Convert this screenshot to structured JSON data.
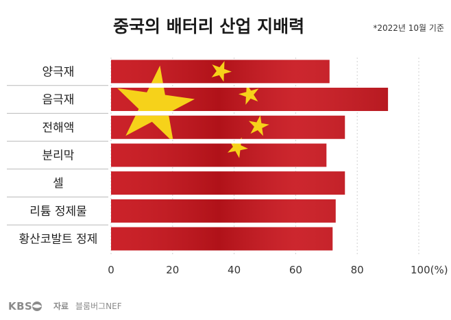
{
  "header": {
    "title": "중국의 배터리 산업 지배력",
    "note": "*2022년 10월 기준"
  },
  "footer": {
    "logo_text": "KBS",
    "source_label": "자료",
    "source_value": "블룸버그NEF"
  },
  "colors": {
    "flag_red": "#c8141c",
    "star_yellow": "#f6d21a",
    "separator": "#b9b9b9"
  },
  "chart_data": {
    "type": "bar",
    "orientation": "horizontal",
    "categories": [
      "양극재",
      "음극재",
      "전해액",
      "분리막",
      "셀",
      "리튬 정제물",
      "황산코발트 정제"
    ],
    "values": [
      71,
      90,
      76,
      70,
      76,
      73,
      72
    ],
    "xlim": [
      0,
      100
    ],
    "x_ticks": [
      0,
      20,
      40,
      60,
      80,
      100
    ],
    "x_tick_labels": [
      "0",
      "20",
      "40",
      "60",
      "80",
      "100(%)"
    ],
    "grid": true,
    "legend": "none"
  }
}
